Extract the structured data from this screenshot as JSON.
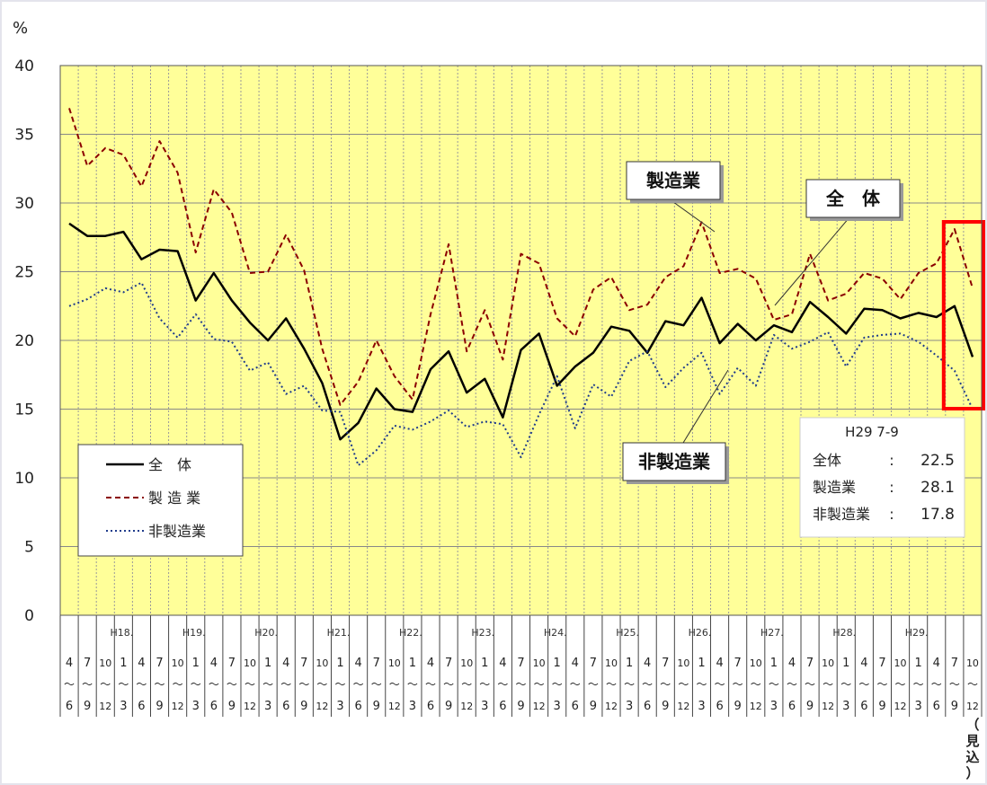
{
  "chart_data": {
    "type": "line",
    "ylabel": "%",
    "ylim": [
      0,
      40
    ],
    "yticks": [
      0,
      5,
      10,
      15,
      20,
      25,
      30,
      35,
      40
    ],
    "grid": true,
    "background": "#ffff99",
    "year_labels": [
      "H18.",
      "H19.",
      "H20.",
      "H21.",
      "H22.",
      "H23.",
      "H24.",
      "H25.",
      "H26.",
      "H27.",
      "H28.",
      "H29."
    ],
    "quarter_top": [
      "4",
      "7",
      "10",
      "1"
    ],
    "quarter_bottom": [
      "6",
      "9",
      "12",
      "3"
    ],
    "tilde": "～",
    "forecast_label": "（見込）",
    "series": [
      {
        "name": "全　体",
        "style": "solid",
        "color": "#000000",
        "values": [
          28.5,
          27.6,
          27.6,
          27.9,
          25.9,
          26.6,
          26.5,
          22.9,
          24.9,
          22.9,
          21.3,
          20.0,
          21.6,
          19.4,
          16.9,
          12.8,
          14.0,
          16.5,
          15.0,
          14.8,
          17.9,
          19.2,
          16.2,
          17.2,
          14.4,
          19.3,
          20.5,
          16.7,
          18.1,
          19.1,
          21.0,
          20.7,
          19.1,
          21.4,
          21.1,
          23.1,
          19.8,
          21.2,
          20.0,
          21.1,
          20.6,
          22.8,
          21.7,
          20.5,
          22.3,
          22.2,
          21.6,
          22.0,
          21.7,
          22.5,
          18.8
        ]
      },
      {
        "name": "製 造 業",
        "style": "dashed",
        "color": "#8b0000",
        "values": [
          36.9,
          32.7,
          34.0,
          33.5,
          31.2,
          34.5,
          32.2,
          26.4,
          31.0,
          29.3,
          24.9,
          25.0,
          27.7,
          25.1,
          19.4,
          15.3,
          17.0,
          20.0,
          17.4,
          15.7,
          21.9,
          27.0,
          19.2,
          22.2,
          18.6,
          26.3,
          25.6,
          21.6,
          20.3,
          23.7,
          24.6,
          22.2,
          22.6,
          24.6,
          25.4,
          28.6,
          24.9,
          25.2,
          24.5,
          21.5,
          21.9,
          26.3,
          22.9,
          23.4,
          24.9,
          24.5,
          23.0,
          24.9,
          25.6,
          28.1,
          23.8
        ]
      },
      {
        "name": "非製造業",
        "style": "dotted",
        "color": "#1f3c8c",
        "values": [
          22.5,
          23.0,
          23.8,
          23.5,
          24.2,
          21.6,
          20.2,
          21.9,
          20.1,
          19.9,
          17.8,
          18.4,
          16.1,
          16.7,
          14.9,
          14.8,
          10.9,
          12.0,
          13.8,
          13.5,
          14.1,
          14.9,
          13.7,
          14.1,
          13.9,
          11.5,
          14.6,
          17.4,
          13.6,
          16.8,
          15.9,
          18.5,
          19.2,
          16.6,
          18.0,
          19.1,
          16.1,
          18.0,
          16.7,
          20.4,
          19.4,
          19.9,
          20.6,
          18.1,
          20.2,
          20.4,
          20.5,
          19.9,
          18.9,
          17.8,
          15.0
        ]
      }
    ],
    "callouts": [
      "製造業",
      "全　体",
      "非製造業"
    ],
    "legend": {
      "placement": "bottom-left",
      "items": [
        {
          "label": "全　体",
          "style": "solid"
        },
        {
          "label": "製 造 業",
          "style": "dashed"
        },
        {
          "label": "非製造業",
          "style": "dotted"
        }
      ]
    },
    "info_box": {
      "title": "H29 7-9",
      "rows": [
        {
          "label": "全体",
          "sep": ":",
          "value": "22.5"
        },
        {
          "label": "製造業",
          "sep": ":",
          "value": "28.1"
        },
        {
          "label": "非製造業",
          "sep": ":",
          "value": "17.8"
        }
      ]
    },
    "highlight": {
      "from_index": 49,
      "to_index": 50,
      "color": "#ff0000"
    }
  }
}
